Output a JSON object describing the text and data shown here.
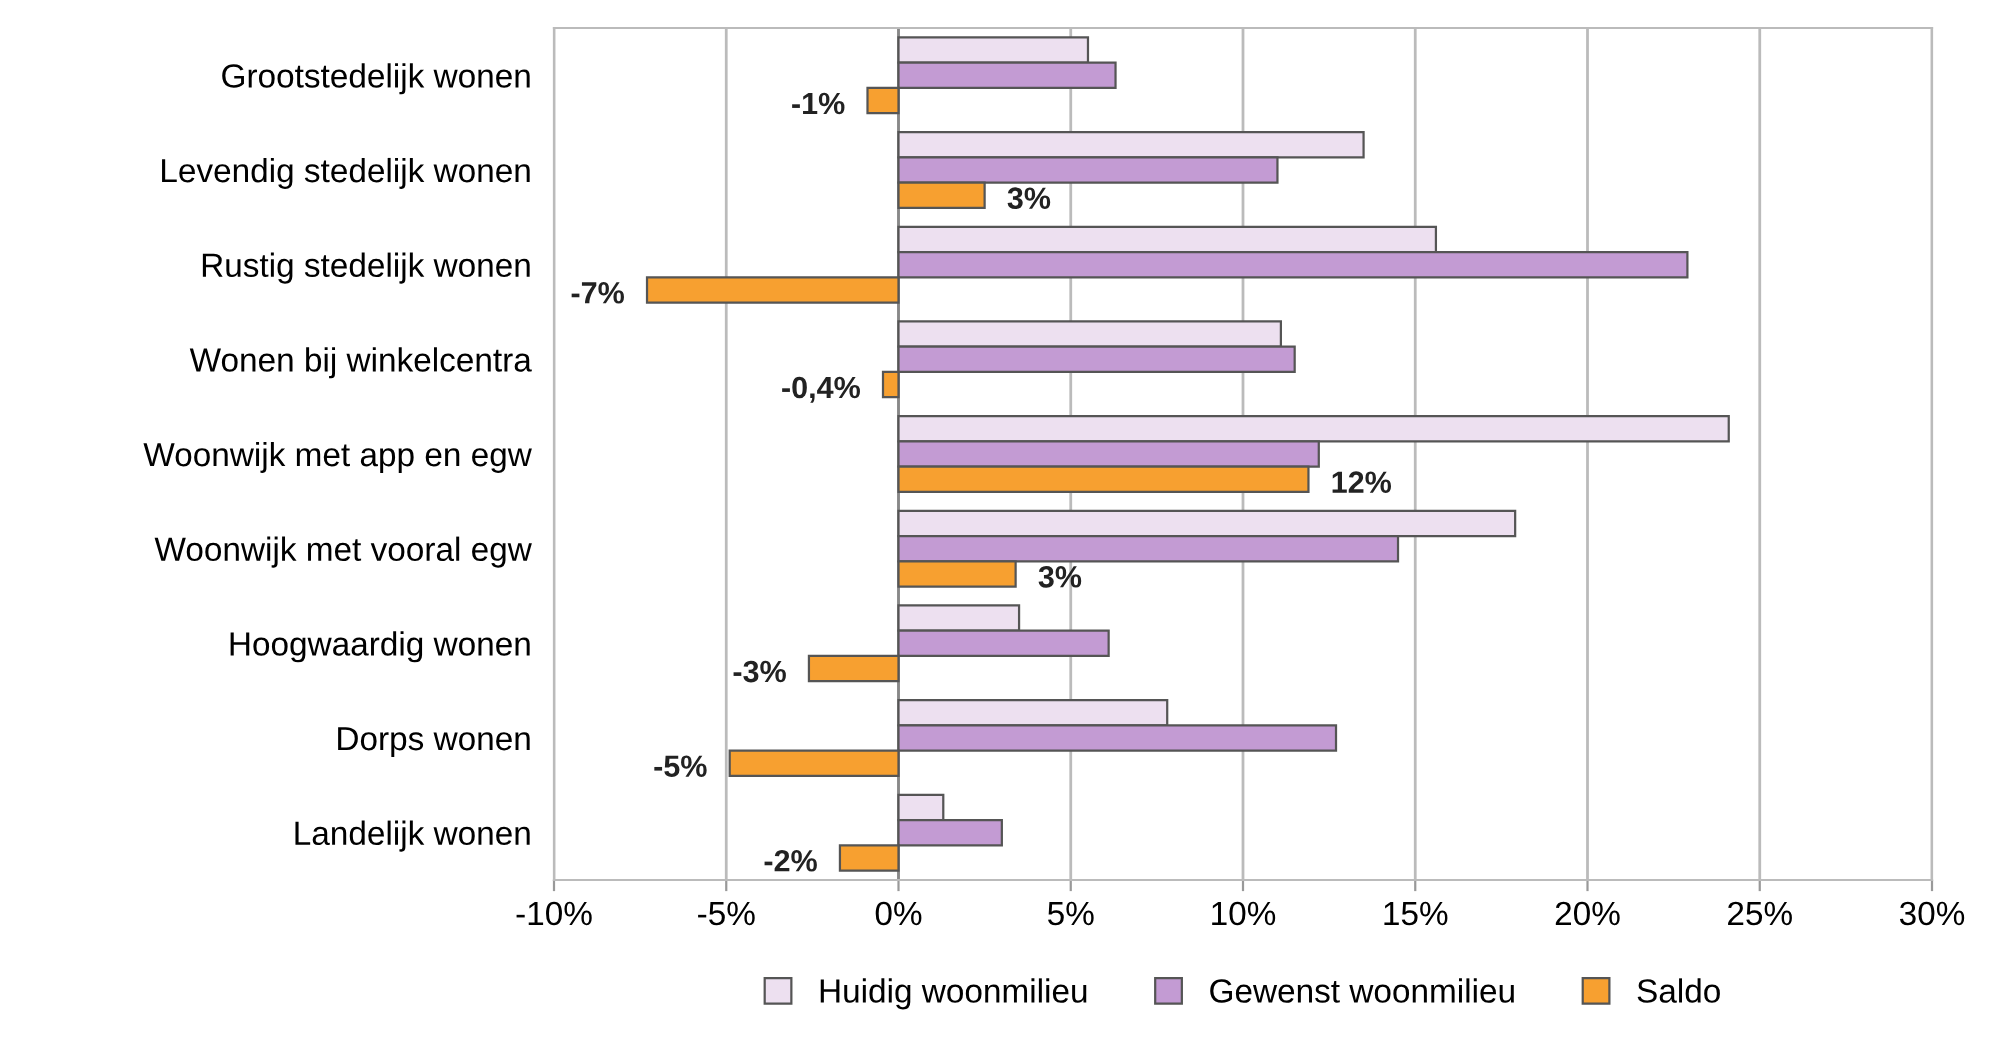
{
  "chart_data": {
    "type": "bar",
    "orientation": "horizontal",
    "categories": [
      "Grootstedelijk wonen",
      "Levendig stedelijk wonen",
      "Rustig stedelijk wonen",
      "Wonen bij winkelcentra",
      "Woonwijk met app en egw",
      "Woonwijk met vooral egw",
      "Hoogwaardig wonen",
      "Dorps wonen",
      "Landelijk wonen"
    ],
    "series": [
      {
        "name": "Huidig woonmilieu",
        "color": "#ede0f0",
        "values": [
          5.5,
          13.5,
          15.6,
          11.1,
          24.1,
          17.9,
          3.5,
          7.8,
          1.3
        ]
      },
      {
        "name": "Gewenst woonmilieu",
        "color": "#c39bd3",
        "values": [
          6.3,
          11.0,
          22.9,
          11.5,
          12.2,
          14.5,
          6.1,
          12.7,
          3.0
        ]
      },
      {
        "name": "Saldo",
        "color": "#f7a030",
        "values": [
          -0.9,
          2.5,
          -7.3,
          -0.45,
          11.9,
          3.4,
          -2.6,
          -4.9,
          -1.7
        ],
        "value_labels": [
          "-1%",
          "3%",
          "-7%",
          "-0,4%",
          "12%",
          "3%",
          "-3%",
          "-5%",
          "-2%"
        ]
      }
    ],
    "xlim": [
      -10,
      30
    ],
    "xticks": [
      {
        "value": -10,
        "label": "-10%"
      },
      {
        "value": -5,
        "label": "-5%"
      },
      {
        "value": 0,
        "label": "0%"
      },
      {
        "value": 5,
        "label": "5%"
      },
      {
        "value": 10,
        "label": "10%"
      },
      {
        "value": 15,
        "label": "15%"
      },
      {
        "value": 20,
        "label": "20%"
      },
      {
        "value": 25,
        "label": "25%"
      },
      {
        "value": 30,
        "label": "30%"
      }
    ],
    "grid": "x",
    "legend": "bottom"
  }
}
